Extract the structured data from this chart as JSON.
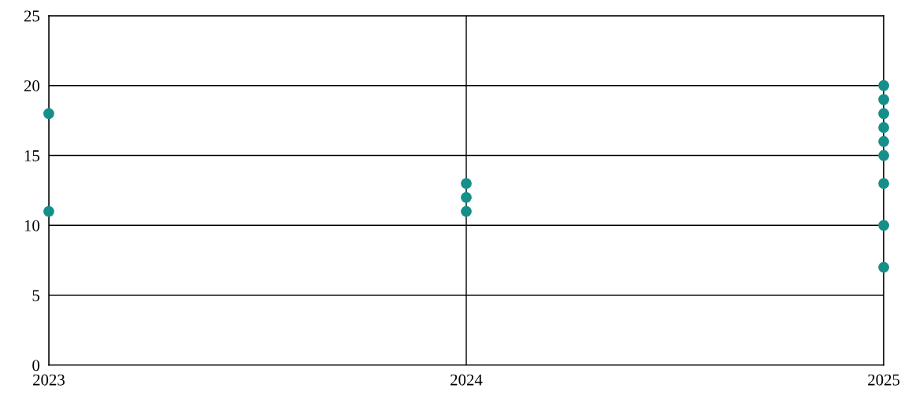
{
  "chart_data": {
    "type": "scatter",
    "x": [
      2023,
      2023,
      2024,
      2024,
      2024,
      2025,
      2025,
      2025,
      2025,
      2025,
      2025,
      2025,
      2025,
      2025
    ],
    "series": [
      {
        "color": "#168f8a",
        "values": [
          18,
          11,
          13,
          12,
          11,
          20,
          19,
          18,
          17,
          16,
          15,
          13,
          10,
          7
        ]
      }
    ],
    "xlim": [
      2023,
      2025
    ],
    "xticks": [
      2023,
      2024,
      2025
    ],
    "ylim": [
      0,
      25
    ],
    "yticks": [
      0,
      5,
      10,
      15,
      20,
      25
    ],
    "grid": true,
    "marker": "circle"
  }
}
